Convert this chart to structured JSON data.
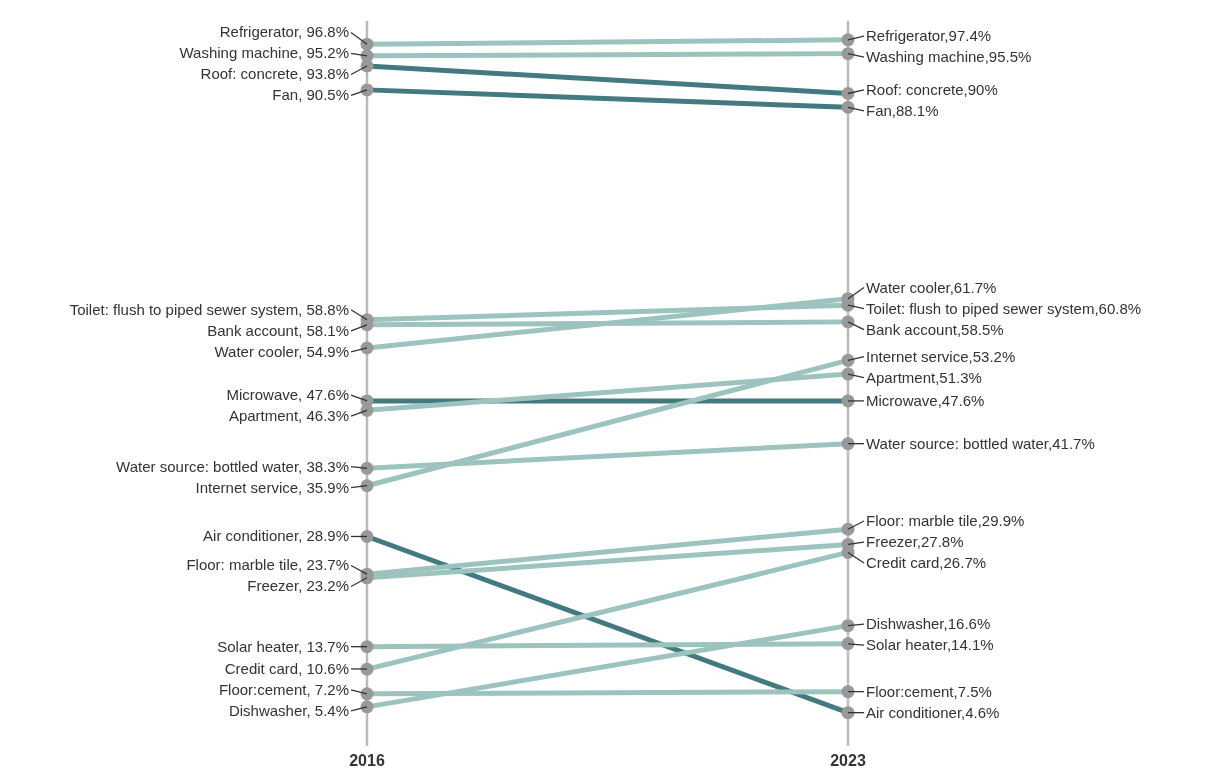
{
  "chart_data": {
    "type": "line",
    "categories": [
      "2016",
      "2023"
    ],
    "ylim": [
      0,
      100
    ],
    "tick_labels": "x",
    "marker": "circle",
    "line_style": "solid",
    "series": [
      {
        "color": "#9cc3bd",
        "values": [
          96.8,
          97.4
        ],
        "value_labels": [
          "Refrigerator, 96.8%",
          "Refrigerator,97.4%"
        ]
      },
      {
        "color": "#9cc3bd",
        "values": [
          95.2,
          95.5
        ],
        "value_labels": [
          "Washing machine, 95.2%",
          "Washing machine,95.5%"
        ]
      },
      {
        "color": "#437a80",
        "values": [
          93.8,
          90
        ],
        "value_labels": [
          "Roof: concrete, 93.8%",
          "Roof: concrete,90%"
        ]
      },
      {
        "color": "#437a80",
        "values": [
          90.5,
          88.1
        ],
        "value_labels": [
          "Fan, 90.5%",
          "Fan,88.1%"
        ]
      },
      {
        "color": "#9cc3bd",
        "values": [
          58.8,
          60.8
        ],
        "value_labels": [
          "Toilet: flush to piped sewer system, 58.8%",
          "Toilet: flush to piped sewer system,60.8%"
        ]
      },
      {
        "color": "#9cc3bd",
        "values": [
          58.1,
          58.5
        ],
        "value_labels": [
          "Bank account, 58.1%",
          "Bank account,58.5%"
        ]
      },
      {
        "color": "#9cc3bd",
        "values": [
          54.9,
          61.7
        ],
        "value_labels": [
          "Water cooler, 54.9%",
          "Water cooler,61.7%"
        ]
      },
      {
        "color": "#437a80",
        "values": [
          47.6,
          47.6
        ],
        "value_labels": [
          "Microwave, 47.6%",
          "Microwave,47.6%"
        ]
      },
      {
        "color": "#9cc3bd",
        "values": [
          46.3,
          51.3
        ],
        "value_labels": [
          "Apartment, 46.3%",
          "Apartment,51.3%"
        ]
      },
      {
        "color": "#9cc3bd",
        "values": [
          38.3,
          41.7
        ],
        "value_labels": [
          "Water source: bottled water, 38.3%",
          "Water source: bottled water,41.7%"
        ]
      },
      {
        "color": "#9cc3bd",
        "values": [
          35.9,
          53.2
        ],
        "value_labels": [
          "Internet service, 35.9%",
          "Internet service,53.2%"
        ]
      },
      {
        "color": "#437a80",
        "values": [
          28.9,
          4.6
        ],
        "value_labels": [
          "Air conditioner, 28.9%",
          "Air conditioner,4.6%"
        ]
      },
      {
        "color": "#9cc3bd",
        "values": [
          23.7,
          29.9
        ],
        "value_labels": [
          "Floor: marble tile, 23.7%",
          "Floor: marble tile,29.9%"
        ]
      },
      {
        "color": "#9cc3bd",
        "values": [
          23.2,
          27.8
        ],
        "value_labels": [
          "Freezer, 23.2%",
          "Freezer,27.8%"
        ]
      },
      {
        "color": "#9cc3bd",
        "values": [
          13.7,
          14.1
        ],
        "value_labels": [
          "Solar heater, 13.7%",
          "Solar heater,14.1%"
        ]
      },
      {
        "color": "#9cc3bd",
        "values": [
          10.6,
          26.7
        ],
        "value_labels": [
          "Credit card, 10.6%",
          "Credit card,26.7%"
        ]
      },
      {
        "color": "#9cc3bd",
        "values": [
          7.2,
          7.5
        ],
        "value_labels": [
          "Floor:cement, 7.2%",
          "Floor:cement,7.5%"
        ]
      },
      {
        "color": "#9cc3bd",
        "values": [
          5.4,
          16.6
        ],
        "value_labels": [
          "Dishwasher, 5.4%",
          "Dishwasher,16.6%"
        ]
      }
    ]
  }
}
